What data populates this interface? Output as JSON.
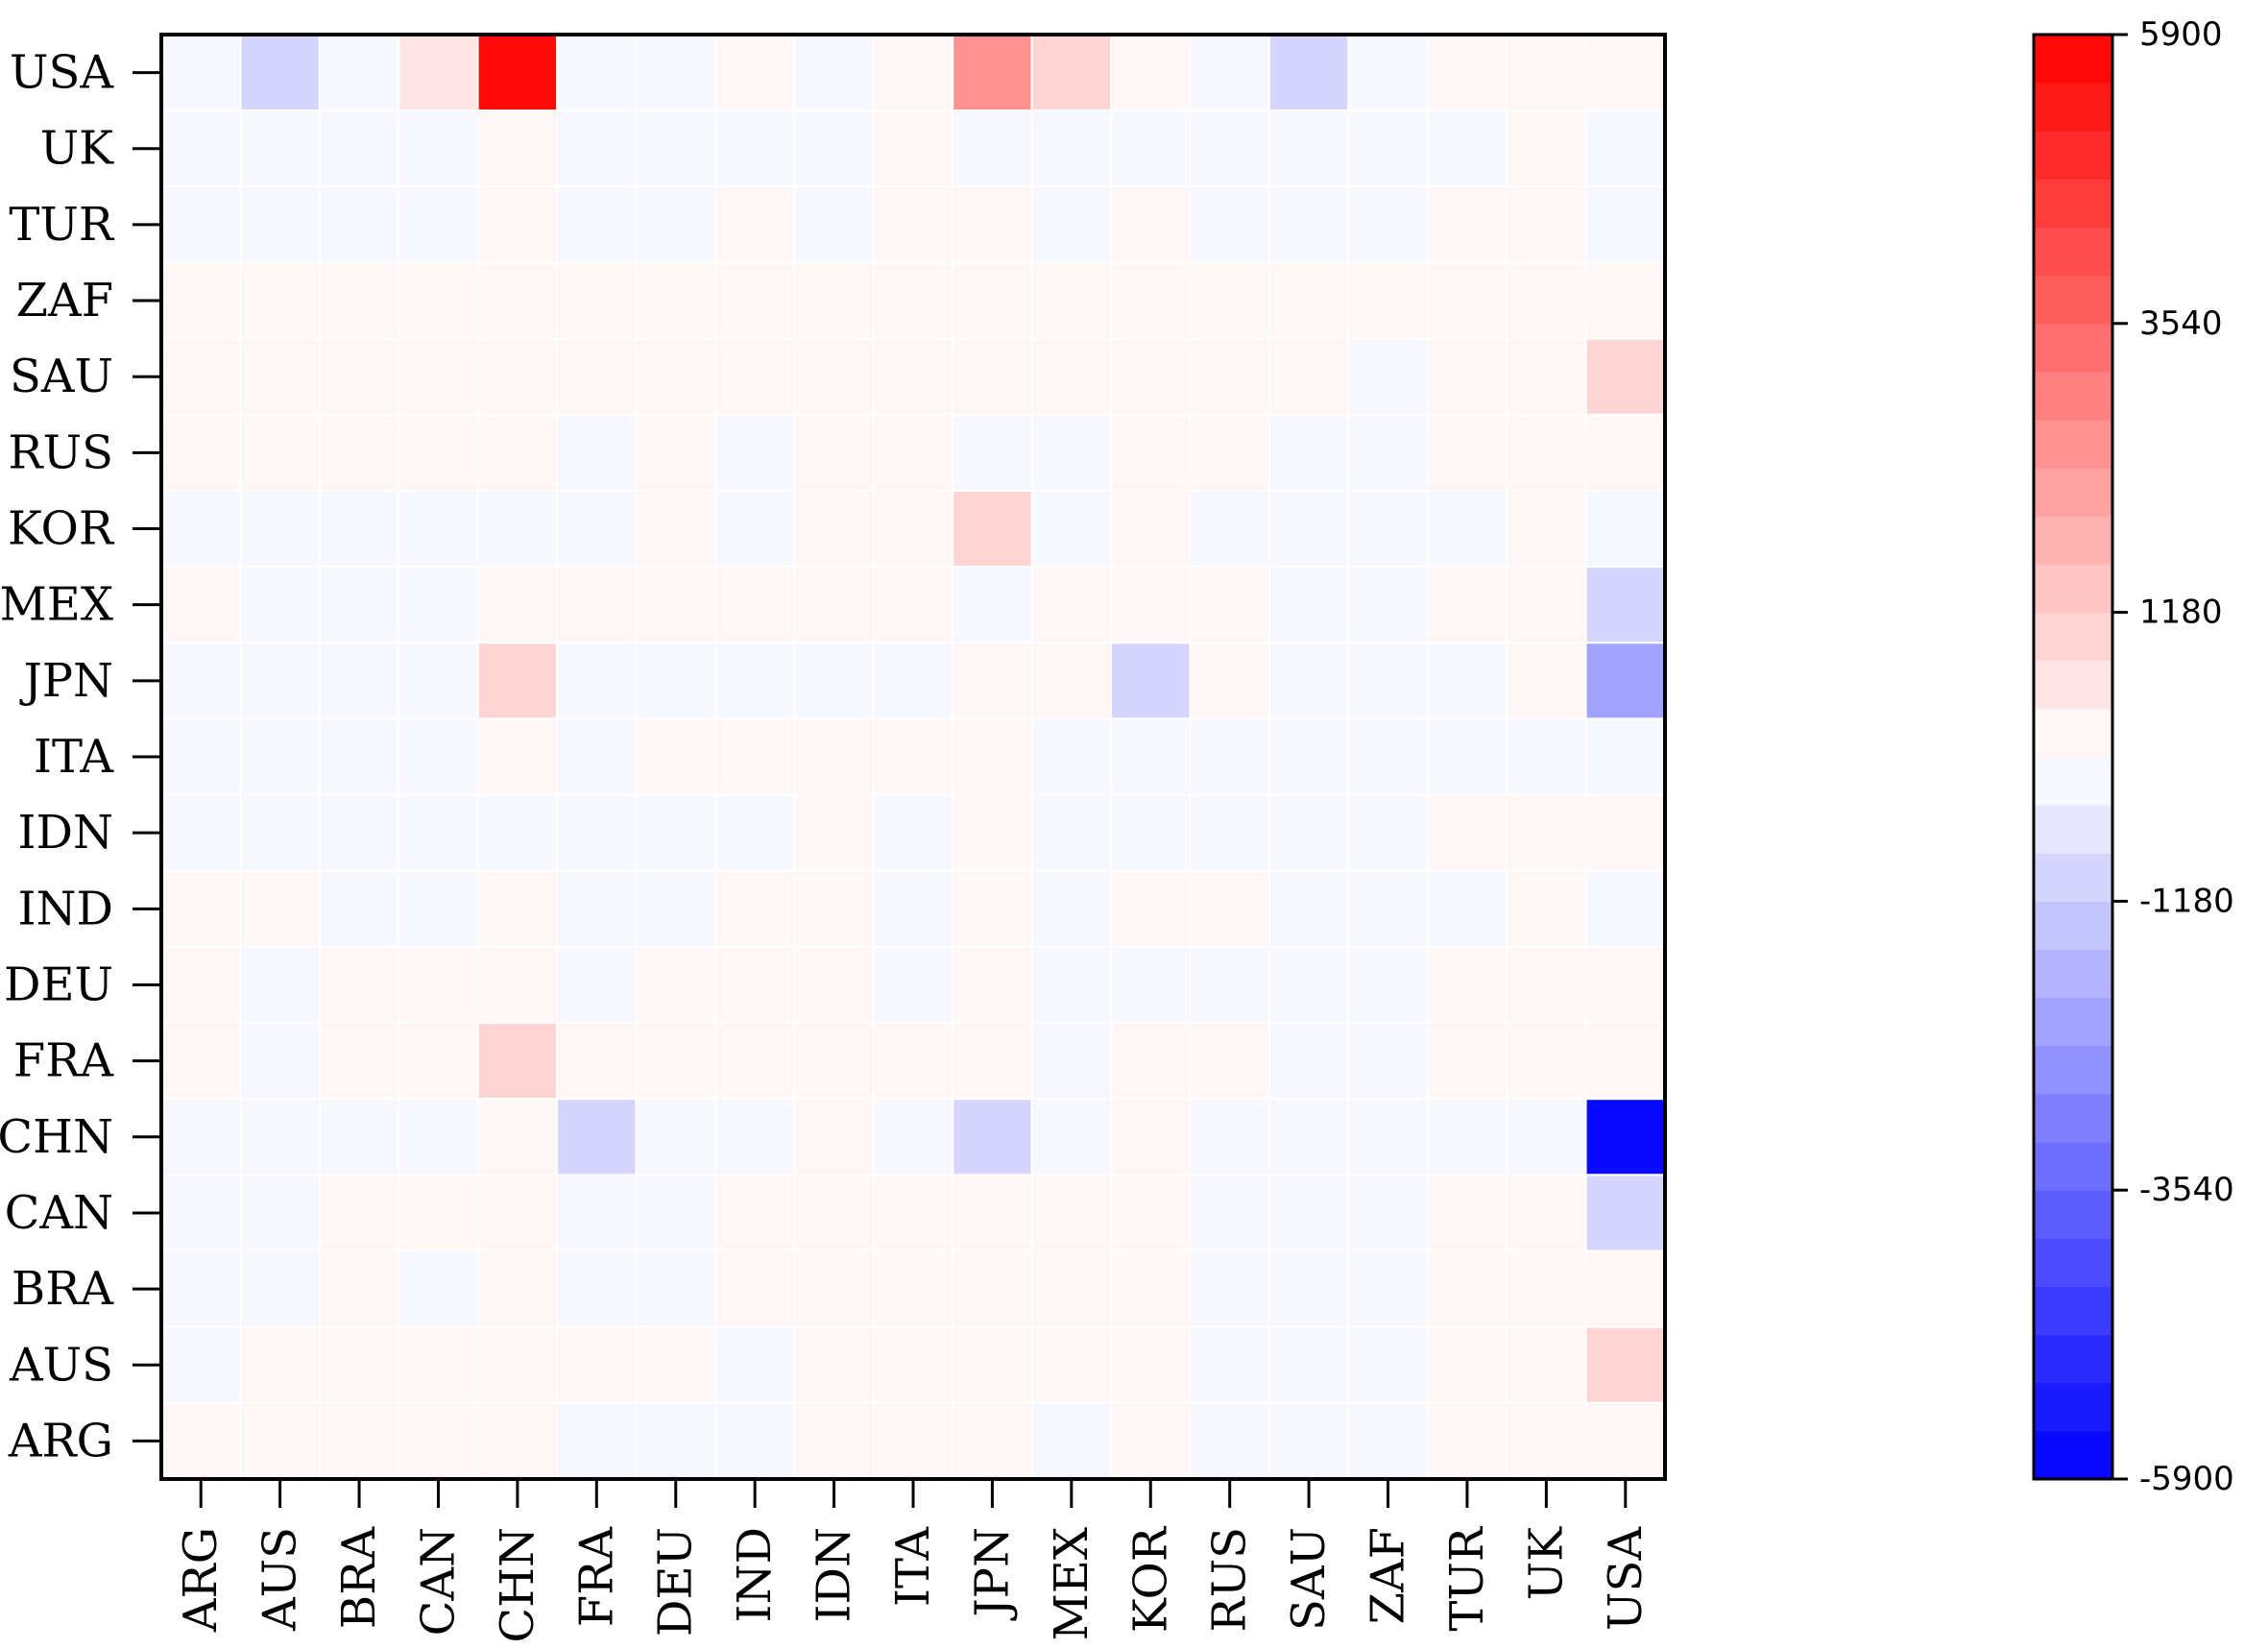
{
  "chart_data": {
    "type": "heatmap",
    "title": "",
    "xlabel": "",
    "ylabel": "",
    "columns": [
      "ARG",
      "AUS",
      "BRA",
      "CAN",
      "CHN",
      "FRA",
      "DEU",
      "IND",
      "IDN",
      "ITA",
      "JPN",
      "MEX",
      "KOR",
      "RUS",
      "SAU",
      "ZAF",
      "TUR",
      "UK",
      "USA"
    ],
    "rows": [
      "USA",
      "UK",
      "TUR",
      "ZAF",
      "SAU",
      "RUS",
      "KOR",
      "MEX",
      "JPN",
      "ITA",
      "IDN",
      "IND",
      "DEU",
      "FRA",
      "CHN",
      "CAN",
      "BRA",
      "AUS",
      "ARG"
    ],
    "values": [
      [
        -150,
        -800,
        -150,
        600,
        5900,
        -150,
        -150,
        200,
        -150,
        200,
        2700,
        800,
        200,
        -150,
        -800,
        -150,
        200,
        200,
        200
      ],
      [
        -150,
        -150,
        -150,
        -150,
        200,
        -150,
        -150,
        -150,
        -150,
        200,
        -150,
        -150,
        -150,
        -150,
        -150,
        -150,
        -150,
        200,
        -150
      ],
      [
        -150,
        -150,
        -150,
        -150,
        200,
        -150,
        -150,
        200,
        -150,
        200,
        200,
        -150,
        200,
        -150,
        -150,
        -150,
        200,
        200,
        -150
      ],
      [
        200,
        200,
        200,
        200,
        200,
        200,
        200,
        200,
        200,
        200,
        200,
        200,
        200,
        200,
        200,
        200,
        200,
        200,
        200
      ],
      [
        200,
        200,
        200,
        200,
        200,
        200,
        200,
        200,
        200,
        200,
        200,
        200,
        200,
        200,
        200,
        -150,
        200,
        200,
        800
      ],
      [
        200,
        200,
        200,
        200,
        200,
        -150,
        200,
        -150,
        200,
        200,
        -150,
        -150,
        200,
        200,
        -150,
        -150,
        200,
        200,
        200
      ],
      [
        -150,
        -150,
        -150,
        -150,
        -150,
        -150,
        200,
        -150,
        200,
        200,
        800,
        -150,
        200,
        -150,
        -150,
        -150,
        -150,
        200,
        -150
      ],
      [
        200,
        -150,
        -150,
        -150,
        200,
        200,
        200,
        200,
        200,
        200,
        -150,
        200,
        200,
        200,
        -150,
        -150,
        200,
        200,
        -800
      ],
      [
        -150,
        -150,
        -150,
        -150,
        800,
        -150,
        -150,
        -150,
        -150,
        -150,
        200,
        200,
        -800,
        200,
        -150,
        -150,
        -150,
        200,
        -2200
      ],
      [
        -150,
        -150,
        -150,
        -150,
        200,
        -150,
        200,
        200,
        200,
        200,
        200,
        -150,
        -150,
        -150,
        -150,
        -150,
        -150,
        -150,
        -150
      ],
      [
        -150,
        -150,
        -150,
        -150,
        -150,
        -150,
        -150,
        -150,
        200,
        -150,
        200,
        -150,
        -150,
        -150,
        -150,
        -150,
        200,
        200,
        200
      ],
      [
        200,
        200,
        -150,
        -150,
        200,
        -150,
        -150,
        200,
        200,
        -150,
        200,
        -150,
        200,
        200,
        -150,
        -150,
        -150,
        200,
        -150
      ],
      [
        200,
        -150,
        200,
        200,
        200,
        -150,
        200,
        200,
        200,
        -150,
        200,
        -150,
        -150,
        -150,
        -150,
        -150,
        200,
        200,
        200
      ],
      [
        200,
        -150,
        200,
        200,
        800,
        200,
        200,
        200,
        200,
        200,
        200,
        -150,
        200,
        200,
        -150,
        -150,
        200,
        200,
        200
      ],
      [
        -150,
        -150,
        -150,
        -150,
        200,
        -800,
        -150,
        -150,
        200,
        -150,
        -800,
        -150,
        200,
        -150,
        -150,
        -150,
        -150,
        -150,
        -5900
      ],
      [
        -150,
        -150,
        200,
        200,
        200,
        -150,
        -150,
        200,
        200,
        200,
        200,
        200,
        200,
        -150,
        -150,
        -150,
        200,
        200,
        -800
      ],
      [
        -150,
        -150,
        200,
        -150,
        200,
        -150,
        -150,
        200,
        200,
        200,
        200,
        200,
        200,
        -150,
        -150,
        -150,
        200,
        200,
        200
      ],
      [
        -150,
        200,
        200,
        200,
        200,
        200,
        200,
        -150,
        200,
        200,
        200,
        200,
        200,
        -150,
        -150,
        -150,
        200,
        200,
        800
      ],
      [
        200,
        200,
        200,
        200,
        200,
        -150,
        -150,
        -150,
        200,
        200,
        200,
        -150,
        200,
        -150,
        -150,
        -150,
        200,
        200,
        200
      ]
    ],
    "colorbar": {
      "min": -5900,
      "max": 5900,
      "ticks": [
        "5900",
        "3540",
        "1180",
        "-1180",
        "-3540",
        "-5900"
      ],
      "tick_values": [
        5900,
        3540,
        1180,
        -1180,
        -3540,
        -5900
      ],
      "steps": 30,
      "low_color": "#0000ff",
      "mid_color": "#ffffff",
      "high_color": "#ff0000"
    },
    "grid": true,
    "legend": "colorbar-right"
  }
}
